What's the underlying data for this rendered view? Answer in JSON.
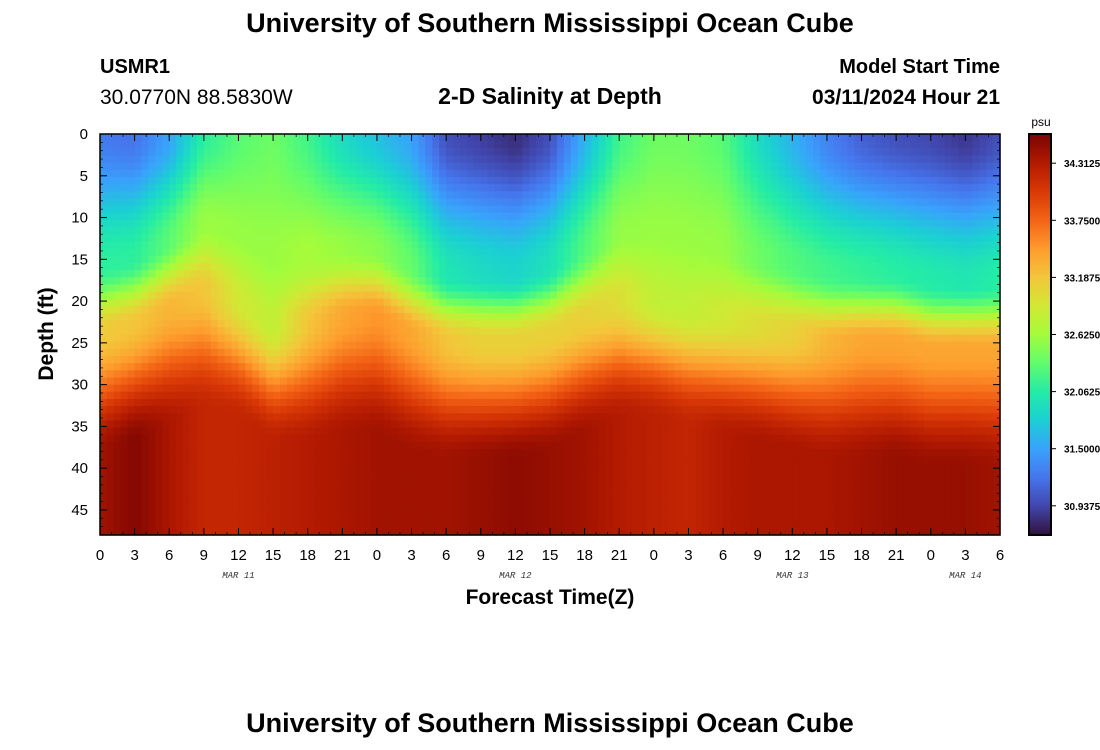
{
  "header": {
    "title": "University of Southern Mississippi Ocean Cube",
    "station_id": "USMR1",
    "station_coords": "30.0770N  88.5830W",
    "subtitle": "2-D Salinity at Depth",
    "start_label": "Model Start Time",
    "start_value": "03/11/2024 Hour 21"
  },
  "footer": {
    "title": "University of Southern Mississippi Ocean Cube"
  },
  "chart_data": {
    "type": "heatmap",
    "title": "2-D Salinity at Depth",
    "xlabel": "Forecast Time(Z)",
    "ylabel": "Depth (ft)",
    "x_hours_range": [
      0,
      78
    ],
    "x_tick_labels": [
      "0",
      "3",
      "6",
      "9",
      "12",
      "15",
      "18",
      "21",
      "0",
      "3",
      "6",
      "9",
      "12",
      "15",
      "18",
      "21",
      "0",
      "3",
      "6",
      "9",
      "12",
      "15",
      "18",
      "21",
      "0",
      "3",
      "6"
    ],
    "date_labels": [
      {
        "label": "MAR 11",
        "hour": 12
      },
      {
        "label": "MAR 12",
        "hour": 36
      },
      {
        "label": "MAR 13",
        "hour": 60
      },
      {
        "label": "MAR 14",
        "hour": 75
      }
    ],
    "y_range": [
      0,
      48
    ],
    "y_ticks": [
      0,
      5,
      10,
      15,
      20,
      25,
      30,
      35,
      40,
      45
    ],
    "y_tick_labels": [
      "0",
      "5",
      "10",
      "15",
      "20",
      "25",
      "30",
      "35",
      "40",
      "45"
    ],
    "colorbar": {
      "unit": "psu",
      "range": [
        30.65,
        34.6
      ],
      "tick_values": [
        34.3125,
        33.75,
        33.1875,
        32.625,
        32.0625,
        31.5,
        30.9375
      ],
      "tick_labels": [
        "34.3125",
        "33.7500",
        "33.1875",
        "32.6250",
        "32.0625",
        "31.5000",
        "30.9375"
      ],
      "colors": [
        "#30123b",
        "#4145ab",
        "#4675ed",
        "#39a2fc",
        "#1bcfd4",
        "#24eca6",
        "#61fc6c",
        "#a4fc3b",
        "#d1e834",
        "#f3c63a",
        "#fe9b2d",
        "#f36315",
        "#d93806",
        "#b11901",
        "#7a0402"
      ]
    },
    "depth_profile": [
      {
        "hour": 0,
        "surface": 31.25,
        "boundary_depth": 16,
        "mid_max": 33.15,
        "bottom": 34.4
      },
      {
        "hour": 3,
        "surface": 31.2,
        "boundary_depth": 15,
        "mid_max": 33.2,
        "bottom": 34.55
      },
      {
        "hour": 6,
        "surface": 31.5,
        "boundary_depth": 13,
        "mid_max": 33.3,
        "bottom": 34.35
      },
      {
        "hour": 9,
        "surface": 32.1,
        "boundary_depth": 11,
        "mid_max": 33.2,
        "bottom": 34.2
      },
      {
        "hour": 12,
        "surface": 32.3,
        "boundary_depth": 12,
        "mid_max": 32.9,
        "bottom": 34.2
      },
      {
        "hour": 15,
        "surface": 32.4,
        "boundary_depth": 15,
        "mid_max": 32.8,
        "bottom": 34.25
      },
      {
        "hour": 18,
        "surface": 32.2,
        "boundary_depth": 15,
        "mid_max": 33.2,
        "bottom": 34.3
      },
      {
        "hour": 21,
        "surface": 31.9,
        "boundary_depth": 14,
        "mid_max": 33.4,
        "bottom": 34.35
      },
      {
        "hour": 24,
        "surface": 31.7,
        "boundary_depth": 14,
        "mid_max": 33.5,
        "bottom": 34.4
      },
      {
        "hour": 27,
        "surface": 31.5,
        "boundary_depth": 16,
        "mid_max": 33.4,
        "bottom": 34.4
      },
      {
        "hour": 30,
        "surface": 31.0,
        "boundary_depth": 17,
        "mid_max": 33.2,
        "bottom": 34.4
      },
      {
        "hour": 33,
        "surface": 30.9,
        "boundary_depth": 17,
        "mid_max": 33.1,
        "bottom": 34.45
      },
      {
        "hour": 36,
        "surface": 30.8,
        "boundary_depth": 17,
        "mid_max": 33.1,
        "bottom": 34.5
      },
      {
        "hour": 39,
        "surface": 31.0,
        "boundary_depth": 16,
        "mid_max": 33.1,
        "bottom": 34.45
      },
      {
        "hour": 42,
        "surface": 31.6,
        "boundary_depth": 14,
        "mid_max": 33.1,
        "bottom": 34.4
      },
      {
        "hour": 45,
        "surface": 32.2,
        "boundary_depth": 12,
        "mid_max": 33.0,
        "bottom": 34.3
      },
      {
        "hour": 48,
        "surface": 32.4,
        "boundary_depth": 12,
        "mid_max": 32.8,
        "bottom": 34.25
      },
      {
        "hour": 51,
        "surface": 32.4,
        "boundary_depth": 13,
        "mid_max": 32.8,
        "bottom": 34.2
      },
      {
        "hour": 54,
        "surface": 32.3,
        "boundary_depth": 14,
        "mid_max": 32.9,
        "bottom": 34.3
      },
      {
        "hour": 57,
        "surface": 31.9,
        "boundary_depth": 15,
        "mid_max": 33.0,
        "bottom": 34.35
      },
      {
        "hour": 60,
        "surface": 31.6,
        "boundary_depth": 16,
        "mid_max": 33.1,
        "bottom": 34.35
      },
      {
        "hour": 63,
        "surface": 31.3,
        "boundary_depth": 17,
        "mid_max": 33.3,
        "bottom": 34.35
      },
      {
        "hour": 66,
        "surface": 31.1,
        "boundary_depth": 17,
        "mid_max": 33.4,
        "bottom": 34.4
      },
      {
        "hour": 69,
        "surface": 31.0,
        "boundary_depth": 17,
        "mid_max": 33.4,
        "bottom": 34.45
      },
      {
        "hour": 72,
        "surface": 30.95,
        "boundary_depth": 18,
        "mid_max": 33.4,
        "bottom": 34.45
      },
      {
        "hour": 75,
        "surface": 30.85,
        "boundary_depth": 18,
        "mid_max": 33.4,
        "bottom": 34.45
      },
      {
        "hour": 78,
        "surface": 31.0,
        "boundary_depth": 18,
        "mid_max": 33.4,
        "bottom": 34.4
      }
    ]
  }
}
